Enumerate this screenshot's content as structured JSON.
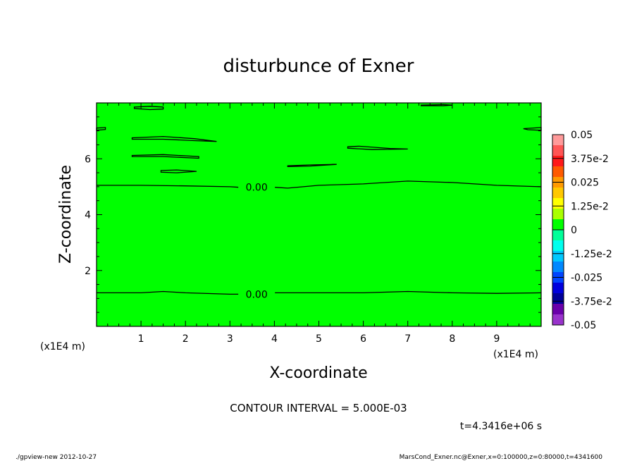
{
  "chart_data": {
    "type": "contour",
    "title": "disturbunce of Exner",
    "xlabel": "X-coordinate",
    "ylabel": "Z-coordinate",
    "x_unit": "(x1E4 m)",
    "y_unit": "(x1E4 m)",
    "xlim": [
      0,
      10
    ],
    "ylim": [
      0,
      8
    ],
    "x_ticks": [
      1,
      2,
      3,
      4,
      5,
      6,
      7,
      8,
      9
    ],
    "y_ticks": [
      2,
      4,
      6
    ],
    "fill_color": "#00ff00",
    "contour_interval_text": "CONTOUR INTERVAL = 5.000E-03",
    "contour_labels": [
      "0.00",
      "0.00"
    ],
    "zero_contours": [
      {
        "label": "0.00",
        "points": [
          [
            0,
            5.05
          ],
          [
            1,
            5.05
          ],
          [
            2,
            5.03
          ],
          [
            3,
            5.0
          ],
          [
            3.2,
            4.98
          ],
          [
            4,
            4.98
          ],
          [
            4.3,
            4.95
          ],
          [
            5,
            5.05
          ],
          [
            6,
            5.1
          ],
          [
            7,
            5.2
          ],
          [
            8,
            5.15
          ],
          [
            9,
            5.05
          ],
          [
            10,
            5.0
          ]
        ]
      },
      {
        "label": "0.00",
        "points": [
          [
            0,
            1.2
          ],
          [
            1,
            1.2
          ],
          [
            1.5,
            1.25
          ],
          [
            2,
            1.2
          ],
          [
            3,
            1.15
          ],
          [
            3.2,
            1.15
          ],
          [
            4,
            1.2
          ],
          [
            5,
            1.2
          ],
          [
            6,
            1.2
          ],
          [
            7,
            1.25
          ],
          [
            8,
            1.2
          ],
          [
            9,
            1.18
          ],
          [
            10,
            1.2
          ]
        ]
      }
    ],
    "closed_contours": [
      [
        [
          0.8,
          6.75
        ],
        [
          1.5,
          6.8
        ],
        [
          2.2,
          6.72
        ],
        [
          2.7,
          6.62
        ],
        [
          2.2,
          6.65
        ],
        [
          1.5,
          6.7
        ],
        [
          0.8,
          6.7
        ]
      ],
      [
        [
          0.8,
          6.12
        ],
        [
          1.5,
          6.15
        ],
        [
          2.3,
          6.08
        ],
        [
          2.3,
          6.02
        ],
        [
          1.5,
          6.08
        ],
        [
          0.8,
          6.08
        ]
      ],
      [
        [
          1.45,
          5.58
        ],
        [
          1.8,
          5.6
        ],
        [
          2.25,
          5.55
        ],
        [
          1.8,
          5.5
        ],
        [
          1.45,
          5.52
        ]
      ],
      [
        [
          4.3,
          5.75
        ],
        [
          4.8,
          5.78
        ],
        [
          5.4,
          5.8
        ],
        [
          4.8,
          5.74
        ],
        [
          4.3,
          5.72
        ]
      ],
      [
        [
          5.65,
          6.43
        ],
        [
          5.9,
          6.45
        ],
        [
          6.6,
          6.37
        ],
        [
          7.0,
          6.35
        ],
        [
          6.2,
          6.33
        ],
        [
          5.65,
          6.38
        ]
      ],
      [
        [
          0.85,
          7.85
        ],
        [
          1.2,
          7.88
        ],
        [
          1.5,
          7.85
        ],
        [
          1.5,
          7.78
        ],
        [
          1.2,
          7.76
        ],
        [
          0.85,
          7.8
        ]
      ],
      [
        [
          7.3,
          7.92
        ],
        [
          7.8,
          7.94
        ],
        [
          8.0,
          7.92
        ],
        [
          7.8,
          7.9
        ],
        [
          7.3,
          7.9
        ]
      ],
      [
        [
          0,
          7.1
        ],
        [
          0.2,
          7.12
        ],
        [
          0.2,
          7.05
        ],
        [
          0,
          7.02
        ]
      ],
      [
        [
          9.6,
          7.08
        ],
        [
          10,
          7.12
        ],
        [
          10,
          7.02
        ],
        [
          9.7,
          7.04
        ]
      ]
    ],
    "colorbar": {
      "labels": [
        "0.05",
        "3.75e-2",
        "0.025",
        "1.25e-2",
        "0",
        "-1.25e-2",
        "-0.025",
        "-3.75e-2",
        "-0.05"
      ],
      "colors_top_to_bottom": [
        "#ff9a9a",
        "#ff5555",
        "#ff1a1a",
        "#ff5a00",
        "#ff9a00",
        "#ffc800",
        "#ffff00",
        "#aaff00",
        "#00ff00",
        "#00ff99",
        "#00ffee",
        "#00c8ff",
        "#0088ff",
        "#0044ff",
        "#0000dd",
        "#000099",
        "#6a00aa",
        "#9933cc"
      ]
    },
    "time_text": "t=4.3416e+06 s"
  },
  "footer": {
    "left": "./gpview-new  2012-10-27",
    "right": "MarsCond_Exner.nc@Exner,x=0:100000,z=0:80000,t=4341600"
  }
}
